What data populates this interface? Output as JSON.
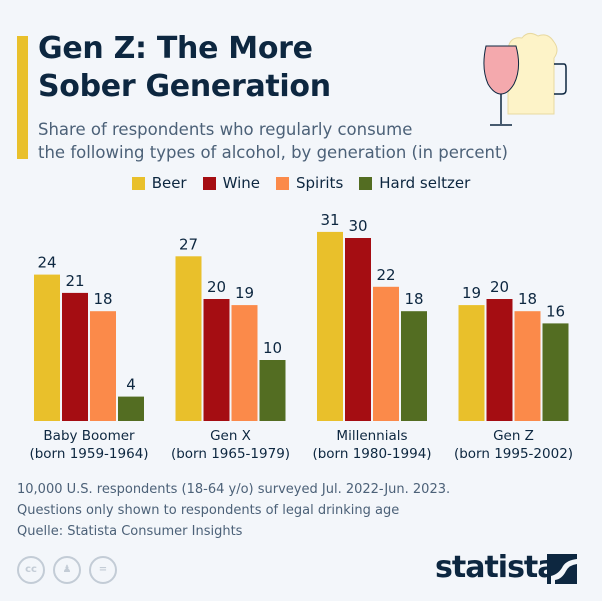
{
  "header": {
    "title_line1": "Gen Z: The More",
    "title_line2": "Sober Generation",
    "subtitle_line1": "Share of respondents who regularly consume",
    "subtitle_line2": "the following types of alcohol, by generation (in percent)"
  },
  "chart_data": {
    "type": "bar",
    "categories": [
      "Baby Boomer (born 1959-1964)",
      "Gen X (born 1965-1979)",
      "Millennials (born 1980-1994)",
      "Gen Z (born 1995-2002)"
    ],
    "category_lines": [
      [
        "Baby Boomer",
        "(born 1959-1964)"
      ],
      [
        "Gen X",
        "(born 1965-1979)"
      ],
      [
        "Millennials",
        "(born 1980-1994)"
      ],
      [
        "Gen Z",
        "(born 1995-2002)"
      ]
    ],
    "series": [
      {
        "name": "Beer",
        "color": "#e9c02b",
        "values": [
          24,
          27,
          31,
          19
        ]
      },
      {
        "name": "Wine",
        "color": "#a50d12",
        "values": [
          21,
          20,
          30,
          20
        ]
      },
      {
        "name": "Spirits",
        "color": "#fb8a4a",
        "values": [
          18,
          19,
          22,
          18
        ]
      },
      {
        "name": "Hard seltzer",
        "color": "#536d22",
        "values": [
          4,
          10,
          18,
          16
        ]
      }
    ],
    "ylim": [
      0,
      31
    ],
    "grid": false,
    "data_labels": true,
    "legend_position": "top-center"
  },
  "footer": {
    "note_line1": "10,000 U.S. respondents (18-64 y/o) surveyed Jul. 2022-Jun. 2023.",
    "note_line2": "Questions only shown to respondents of legal drinking age",
    "source": "Quelle: Statista Consumer Insights",
    "logo": "statista",
    "license_icons": [
      "cc-icon",
      "attribution-icon",
      "no-derivatives-icon"
    ]
  }
}
